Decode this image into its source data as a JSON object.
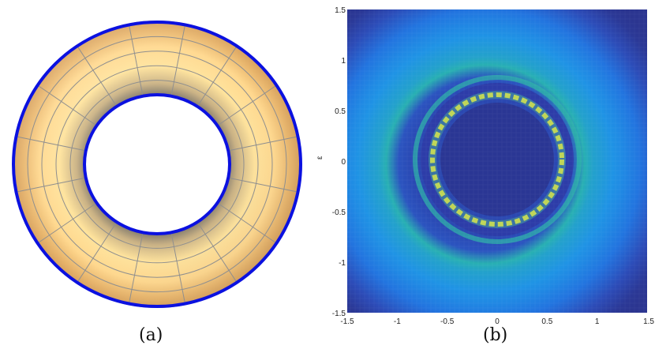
{
  "panel_a": {
    "caption": "(a)",
    "colors": {
      "boundary": "#0b11e0",
      "surface_light": "#ffe09a",
      "surface_dark": "#8a8070",
      "mesh": "#8f8f8f"
    },
    "mesh": {
      "radial_lines": 16,
      "rings": 4
    }
  },
  "panel_b": {
    "caption": "(b)",
    "ylabel": "ε",
    "colors": {
      "background": "#2b3593",
      "ring": "#f6dc3c",
      "mid": "#2fb6a8",
      "halo": "#1f8de6"
    }
  },
  "chart_data": {
    "type": "heatmap",
    "xlim": [
      -1.5,
      1.5
    ],
    "ylim": [
      -1.5,
      1.5
    ],
    "xticks": [
      "-1.5",
      "-1",
      "-0.5",
      "0",
      "0.5",
      "1",
      "1.5"
    ],
    "yticks": [
      "1.5",
      "1",
      "0.5",
      "0",
      "-0.5",
      "-1",
      "-1.5"
    ],
    "ylabel": "ε",
    "features": {
      "bright_ring_radius": 0.65,
      "outer_dark_ring_radius": 0.78,
      "halo_outer_radius": 1.3
    }
  }
}
